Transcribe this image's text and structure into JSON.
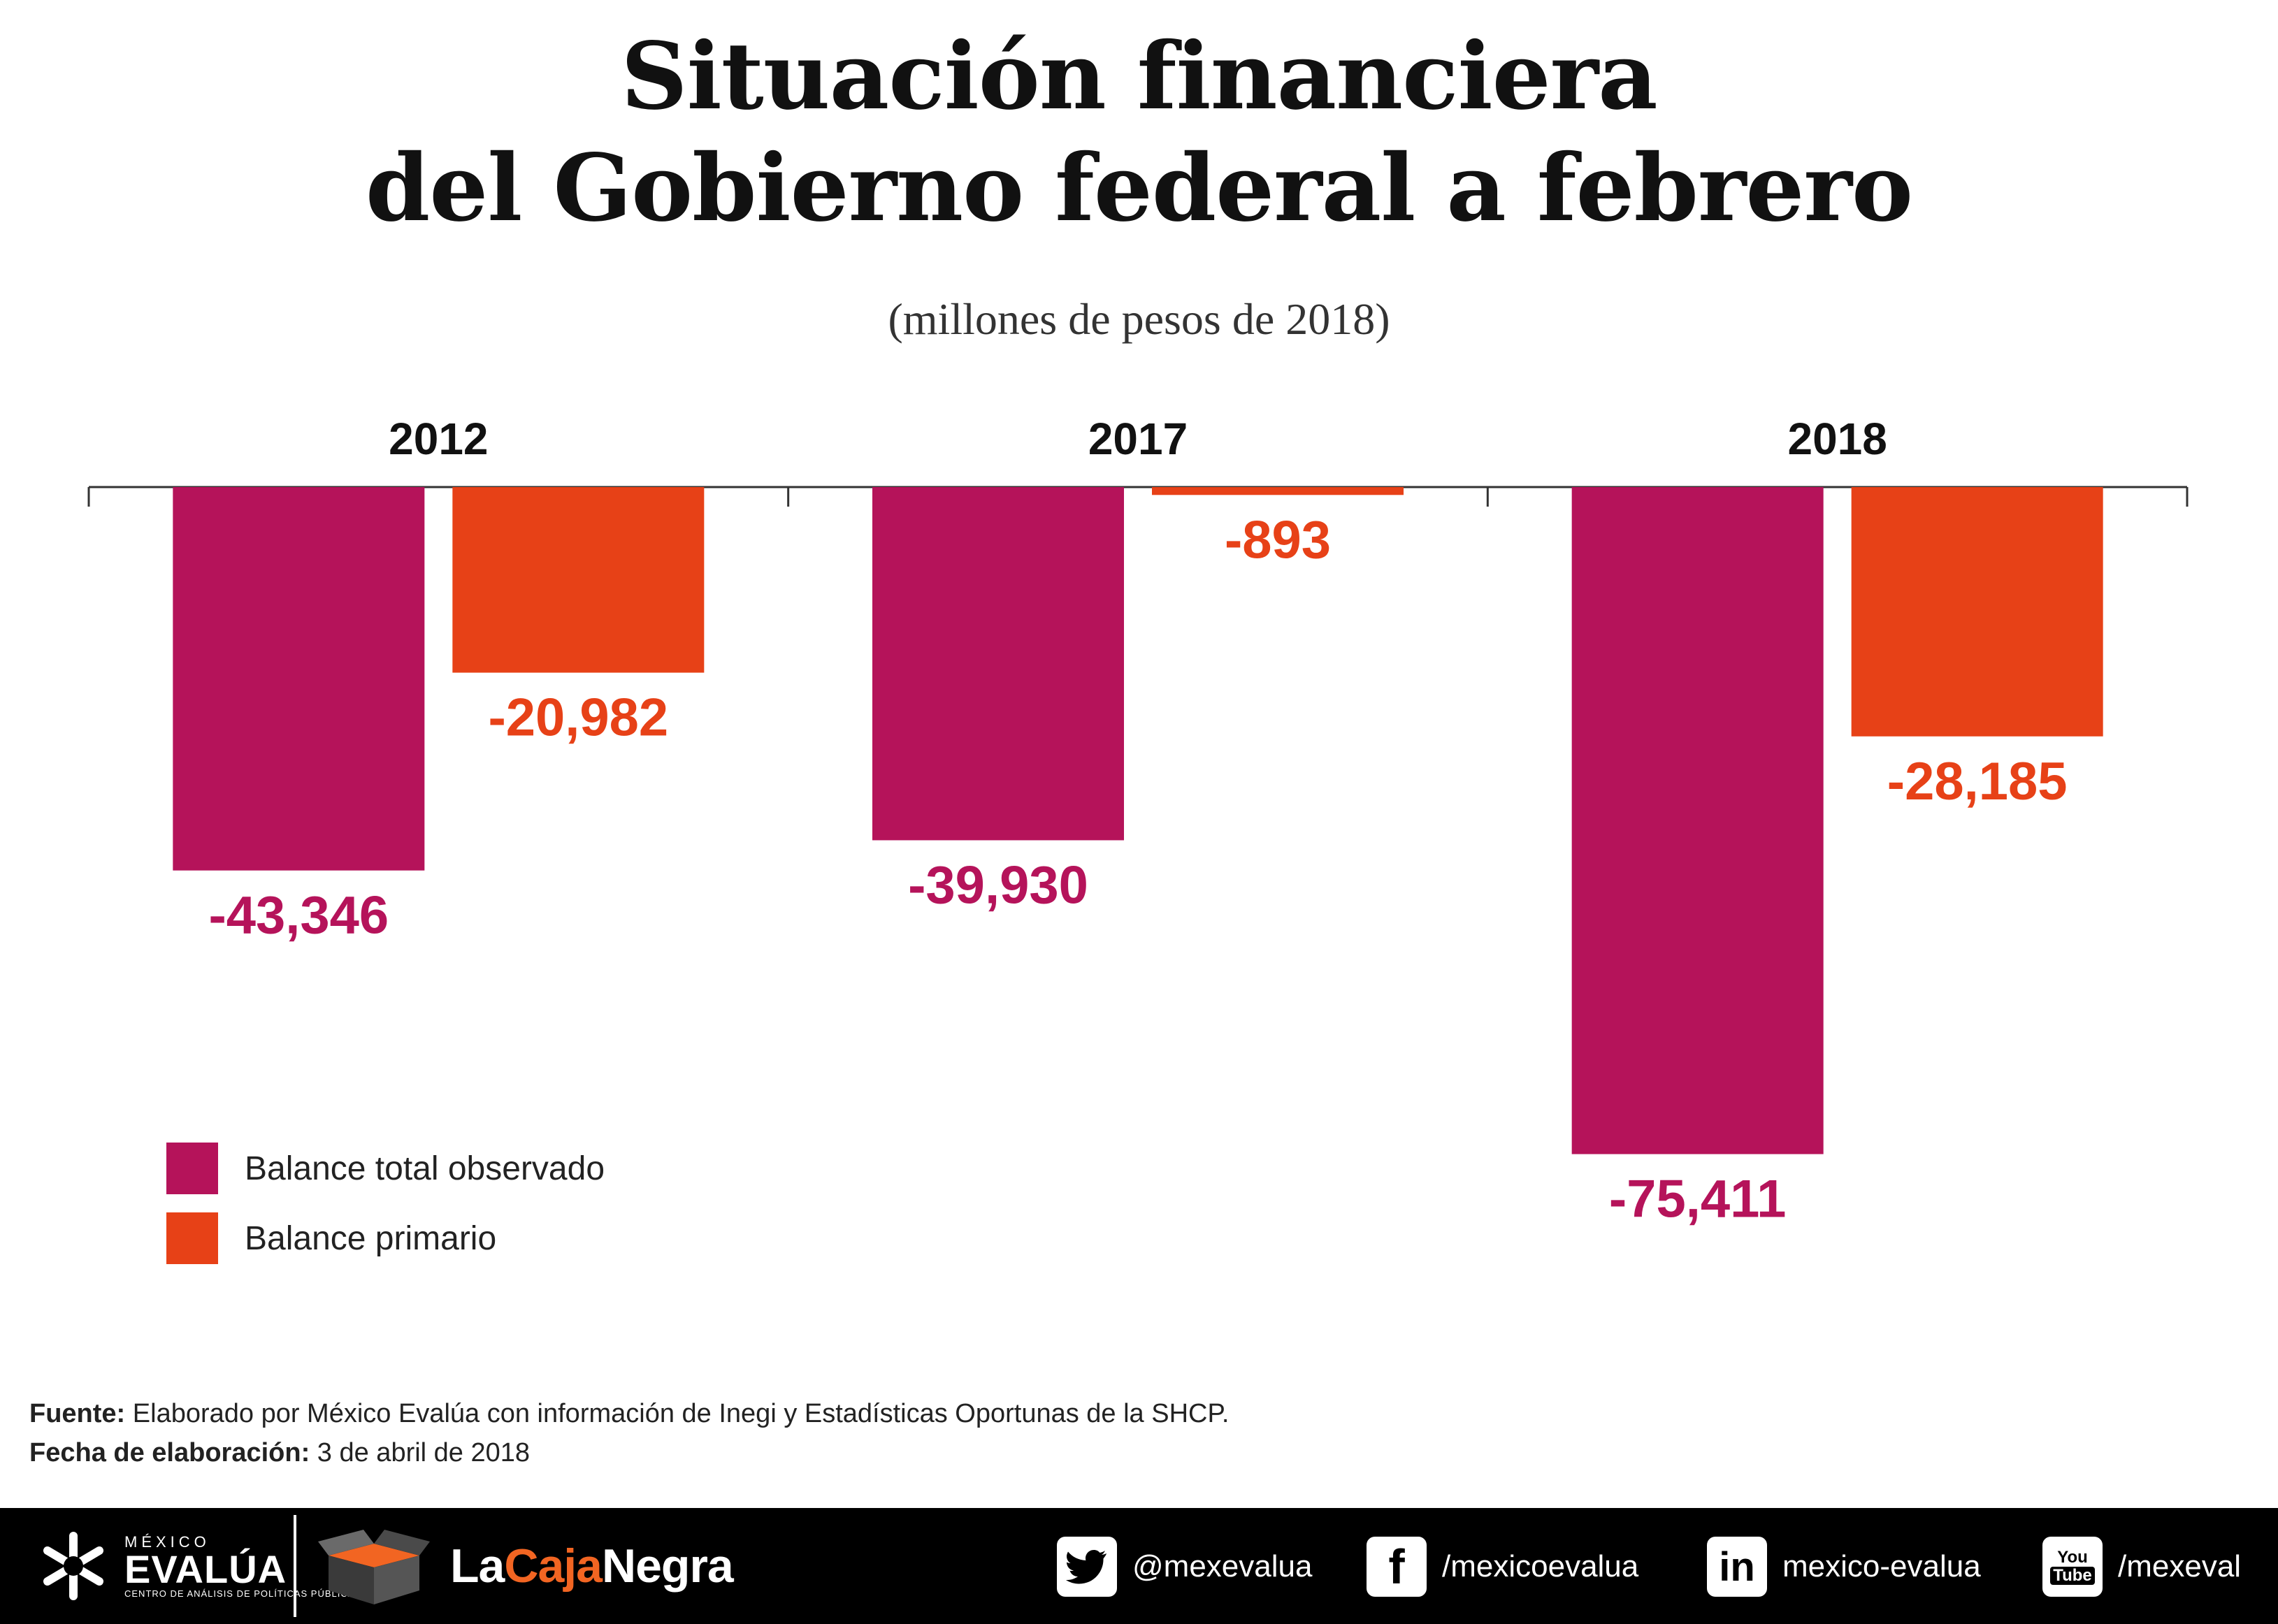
{
  "title_line1": "Situación financiera",
  "title_line2": "del Gobierno federal a febrero",
  "subtitle": "(millones de pesos de 2018)",
  "chart_data": {
    "type": "bar",
    "categories": [
      "2012",
      "2017",
      "2018"
    ],
    "series": [
      {
        "name": "Balance total observado",
        "values": [
          -43346,
          -39930,
          -75411
        ],
        "color": "#b5135a"
      },
      {
        "name": "Balance primario",
        "values": [
          -20982,
          -893,
          -28185
        ],
        "color": "#e74117"
      }
    ],
    "data_labels": [
      [
        "-43,346",
        "-39,930",
        "-75,411"
      ],
      [
        "-20,982",
        "-893",
        "-28,185"
      ]
    ],
    "ylim": [
      -80000,
      0
    ],
    "grid": false,
    "legend_position": "bottom-left",
    "value_axis_shown": false
  },
  "source": {
    "label": "Fuente:",
    "text": " Elaborado por México Evalúa con información de Inegi y Estadísticas Oportunas de la SHCP."
  },
  "date": {
    "label": "Fecha de elaboración:",
    "text": " 3 de abril de 2018"
  },
  "footer": {
    "evalua_top": "MÉXICO",
    "evalua_name": "EVALÚA",
    "evalua_sub": "CENTRO DE ANÁLISIS DE POLÍTICAS PÚBLICAS",
    "cajanegra_1": "La",
    "cajanegra_2": "Caja",
    "cajanegra_3": "Negra",
    "twitter": "@mexevalua",
    "facebook": "/mexicoevalua",
    "linkedin": "mexico-evalua",
    "youtube": "/mexeval"
  }
}
